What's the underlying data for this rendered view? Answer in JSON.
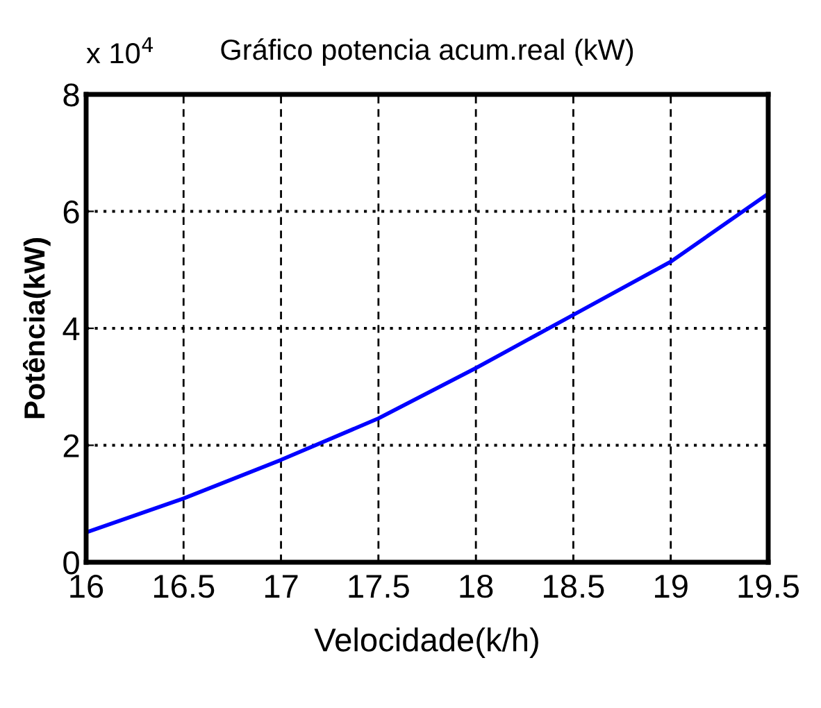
{
  "chart_data": {
    "type": "line",
    "title": "Gráfico potencia acum.real (kW)",
    "xlabel": "Velocidade(k/h)",
    "ylabel": "Potência(kW)",
    "annotations": [
      "x 10$^{4}$"
    ],
    "x": [
      16,
      16.5,
      17,
      17.5,
      18,
      18.5,
      19,
      19.5
    ],
    "series": [
      {
        "color": "#0000ff",
        "values": [
          0.51,
          1.09,
          1.75,
          2.46,
          3.32,
          4.23,
          5.14,
          6.3
        ]
      }
    ],
    "xlim": [
      16,
      19.5
    ],
    "xticks": [
      16,
      16.5,
      17,
      17.5,
      18,
      18.5,
      19,
      19.5
    ],
    "ylim": [
      0,
      8
    ],
    "yticks": [
      0,
      2,
      4,
      6,
      8
    ],
    "grid": true,
    "legend": false
  }
}
